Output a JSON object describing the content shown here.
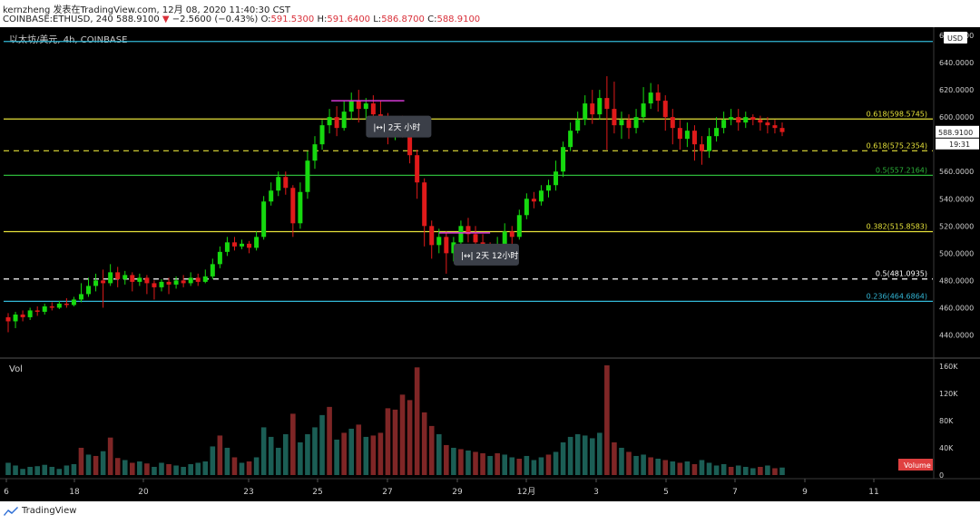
{
  "header": {
    "line1": "kernzheng 发表在TradingView.com, 12月 08, 2020 11:40:30 CST",
    "symbol": "COINBASE:ETHUSD, 240",
    "last": "588.9100",
    "arrow": "▼",
    "change": "−2.5600 (−0.43%)",
    "o_label": "O:",
    "o": "591.5300",
    "h_label": "H:",
    "h": "591.6400",
    "l_label": "L:",
    "l": "586.8700",
    "c_label": "C:",
    "c": "588.9100"
  },
  "pane_title": "以太坊/美元, 4h, COINBASE",
  "volume_label": "Vol",
  "footer": {
    "brand": "TradingView"
  },
  "colors": {
    "up": "#16d90f",
    "down": "#e01a1a",
    "vol_up": "#1b5e55",
    "vol_down": "#7f2626",
    "fib_cyan": "#33b7d6",
    "fib_yellow": "#e6e23a",
    "fib_green": "#2db53a",
    "magenta": "#d63ad6",
    "axis_bg": "#000000",
    "axis_text": "#d0d0d0"
  },
  "chart_data": {
    "type": "candlestick",
    "title": "以太坊/美元, 4h, COINBASE",
    "y_axis": {
      "unit": "USD",
      "ticks": [
        "440.0000",
        "460.0000",
        "480.0000",
        "500.0000",
        "520.0000",
        "540.0000",
        "560.0000",
        "580.0000",
        "600.0000",
        "620.0000",
        "640.0000",
        "660.0000"
      ],
      "range": [
        425,
        666
      ]
    },
    "x_axis": {
      "ticks": [
        "6",
        "18",
        "20",
        "23",
        "25",
        "27",
        "29",
        "12月",
        "3",
        "5",
        "7",
        "9",
        "11"
      ]
    },
    "current_price_label": "588.9100",
    "countdown_label": "19:31",
    "fib_levels": [
      {
        "label": "0.236(464.6864)",
        "price": 464.6864,
        "style": "solid",
        "color": "fib_cyan"
      },
      {
        "label": "0.5(481.0935)",
        "price": 481.0935,
        "style": "dashed",
        "color": "white"
      },
      {
        "label": "0.382(515.8583)",
        "price": 515.8583,
        "style": "solid",
        "color": "fib_yellow"
      },
      {
        "label": "0.5(557.2164)",
        "price": 557.2164,
        "style": "solid",
        "color": "fib_green"
      },
      {
        "label": "0.618(575.2354)",
        "price": 575.2354,
        "style": "dashed",
        "color": "fib_yellow"
      },
      {
        "label": "0.618(598.5745)",
        "price": 598.5745,
        "style": "solid",
        "color": "fib_yellow"
      },
      {
        "label": "",
        "price": 655.5,
        "style": "solid",
        "color": "fib_cyan"
      }
    ],
    "annotations": [
      {
        "text": "2天 12小时",
        "date_idx": 62,
        "price": 499
      },
      {
        "text": "2天 小时",
        "date_idx": 50,
        "price": 593
      }
    ],
    "volume_axis": {
      "ticks": [
        "0",
        "40K",
        "80K",
        "120K",
        "160K"
      ],
      "max": 165000,
      "label": "Volume"
    },
    "candles": [
      [
        453,
        450,
        456,
        442
      ],
      [
        450,
        455,
        457,
        445
      ],
      [
        455,
        453,
        458,
        450
      ],
      [
        453,
        458,
        460,
        451
      ],
      [
        458,
        457,
        461,
        454
      ],
      [
        457,
        461,
        463,
        455
      ],
      [
        461,
        460,
        464,
        458
      ],
      [
        460,
        463,
        465,
        459
      ],
      [
        463,
        462,
        467,
        460
      ],
      [
        462,
        466,
        468,
        461
      ],
      [
        466,
        470,
        478,
        464
      ],
      [
        470,
        476,
        482,
        468
      ],
      [
        476,
        480,
        485,
        472
      ],
      [
        480,
        478,
        488,
        460
      ],
      [
        478,
        486,
        492,
        476
      ],
      [
        486,
        481,
        490,
        475
      ],
      [
        481,
        484,
        487,
        477
      ],
      [
        484,
        479,
        486,
        472
      ],
      [
        479,
        482,
        485,
        476
      ],
      [
        482,
        478,
        484,
        470
      ],
      [
        478,
        475,
        480,
        466
      ],
      [
        475,
        479,
        481,
        472
      ],
      [
        479,
        477,
        482,
        470
      ],
      [
        477,
        480,
        483,
        474
      ],
      [
        480,
        478,
        484,
        475
      ],
      [
        478,
        482,
        486,
        476
      ],
      [
        482,
        479,
        485,
        476
      ],
      [
        479,
        483,
        488,
        478
      ],
      [
        483,
        492,
        496,
        481
      ],
      [
        492,
        501,
        505,
        489
      ],
      [
        501,
        508,
        512,
        498
      ],
      [
        508,
        505,
        512,
        502
      ],
      [
        505,
        507,
        510,
        503
      ],
      [
        507,
        504,
        509,
        500
      ],
      [
        504,
        512,
        516,
        502
      ],
      [
        512,
        538,
        542,
        510
      ],
      [
        538,
        546,
        552,
        535
      ],
      [
        546,
        556,
        560,
        542
      ],
      [
        556,
        548,
        560,
        543
      ],
      [
        548,
        522,
        550,
        512
      ],
      [
        522,
        545,
        552,
        518
      ],
      [
        545,
        568,
        575,
        540
      ],
      [
        568,
        580,
        586,
        562
      ],
      [
        580,
        594,
        598,
        576
      ],
      [
        594,
        600,
        606,
        588
      ],
      [
        600,
        592,
        608,
        586
      ],
      [
        592,
        604,
        612,
        590
      ],
      [
        604,
        612,
        618,
        598
      ],
      [
        612,
        606,
        620,
        596
      ],
      [
        606,
        610,
        614,
        598
      ],
      [
        610,
        602,
        616,
        595
      ],
      [
        602,
        598,
        612,
        590
      ],
      [
        598,
        586,
        603,
        580
      ],
      [
        586,
        595,
        600,
        583
      ],
      [
        595,
        590,
        601,
        585
      ],
      [
        590,
        572,
        594,
        566
      ],
      [
        572,
        552,
        576,
        540
      ],
      [
        552,
        520,
        555,
        505
      ],
      [
        520,
        506,
        524,
        496
      ],
      [
        506,
        512,
        518,
        500
      ],
      [
        512,
        500,
        516,
        485
      ],
      [
        500,
        508,
        512,
        494
      ],
      [
        508,
        520,
        524,
        505
      ],
      [
        520,
        514,
        526,
        508
      ],
      [
        514,
        508,
        520,
        502
      ],
      [
        508,
        502,
        514,
        496
      ],
      [
        502,
        496,
        508,
        492
      ],
      [
        496,
        506,
        512,
        494
      ],
      [
        506,
        516,
        522,
        504
      ],
      [
        516,
        512,
        520,
        506
      ],
      [
        512,
        528,
        532,
        510
      ],
      [
        528,
        540,
        544,
        525
      ],
      [
        540,
        538,
        545,
        533
      ],
      [
        538,
        546,
        550,
        535
      ],
      [
        546,
        550,
        554,
        541
      ],
      [
        550,
        560,
        568,
        546
      ],
      [
        560,
        578,
        582,
        556
      ],
      [
        578,
        590,
        596,
        575
      ],
      [
        590,
        598,
        604,
        588
      ],
      [
        598,
        610,
        616,
        594
      ],
      [
        610,
        602,
        620,
        595
      ],
      [
        602,
        614,
        620,
        598
      ],
      [
        614,
        606,
        630,
        576
      ],
      [
        606,
        594,
        626,
        588
      ],
      [
        594,
        598,
        604,
        584
      ],
      [
        598,
        592,
        602,
        584
      ],
      [
        592,
        600,
        606,
        588
      ],
      [
        600,
        610,
        622,
        596
      ],
      [
        610,
        618,
        625,
        606
      ],
      [
        618,
        612,
        624,
        604
      ],
      [
        612,
        600,
        616,
        590
      ],
      [
        600,
        592,
        606,
        580
      ],
      [
        592,
        584,
        598,
        576
      ],
      [
        584,
        590,
        596,
        578
      ],
      [
        590,
        580,
        594,
        568
      ],
      [
        580,
        575,
        586,
        565
      ],
      [
        575,
        586,
        592,
        570
      ],
      [
        586,
        592,
        600,
        582
      ],
      [
        592,
        598,
        604,
        588
      ],
      [
        598,
        600,
        606,
        594
      ],
      [
        600,
        596,
        606,
        590
      ],
      [
        596,
        600,
        604,
        592
      ],
      [
        600,
        598,
        602,
        594
      ],
      [
        598,
        596,
        601,
        590
      ],
      [
        596,
        594,
        600,
        588
      ],
      [
        594,
        592,
        598,
        588
      ],
      [
        592,
        589,
        596,
        586
      ]
    ],
    "volumes": [
      [
        18000,
        1
      ],
      [
        14000,
        1
      ],
      [
        9000,
        1
      ],
      [
        12000,
        1
      ],
      [
        13000,
        1
      ],
      [
        15000,
        1
      ],
      [
        12000,
        1
      ],
      [
        9000,
        1
      ],
      [
        14000,
        1
      ],
      [
        16000,
        1
      ],
      [
        40000,
        0
      ],
      [
        30000,
        1
      ],
      [
        28000,
        0
      ],
      [
        35000,
        1
      ],
      [
        55000,
        0
      ],
      [
        25000,
        0
      ],
      [
        22000,
        1
      ],
      [
        18000,
        0
      ],
      [
        20000,
        1
      ],
      [
        17000,
        0
      ],
      [
        12000,
        1
      ],
      [
        18000,
        1
      ],
      [
        16000,
        0
      ],
      [
        14000,
        1
      ],
      [
        12000,
        1
      ],
      [
        16000,
        1
      ],
      [
        18000,
        1
      ],
      [
        20000,
        1
      ],
      [
        42000,
        1
      ],
      [
        58000,
        0
      ],
      [
        40000,
        1
      ],
      [
        26000,
        0
      ],
      [
        18000,
        1
      ],
      [
        20000,
        0
      ],
      [
        26000,
        1
      ],
      [
        70000,
        1
      ],
      [
        56000,
        1
      ],
      [
        40000,
        1
      ],
      [
        60000,
        1
      ],
      [
        90000,
        0
      ],
      [
        48000,
        1
      ],
      [
        60000,
        1
      ],
      [
        70000,
        1
      ],
      [
        88000,
        1
      ],
      [
        100000,
        0
      ],
      [
        52000,
        1
      ],
      [
        62000,
        0
      ],
      [
        68000,
        1
      ],
      [
        74000,
        0
      ],
      [
        56000,
        1
      ],
      [
        58000,
        0
      ],
      [
        62000,
        0
      ],
      [
        98000,
        0
      ],
      [
        96000,
        0
      ],
      [
        118000,
        0
      ],
      [
        110000,
        0
      ],
      [
        158000,
        0
      ],
      [
        92000,
        0
      ],
      [
        72000,
        0
      ],
      [
        60000,
        1
      ],
      [
        44000,
        0
      ],
      [
        40000,
        1
      ],
      [
        38000,
        0
      ],
      [
        36000,
        1
      ],
      [
        34000,
        0
      ],
      [
        32000,
        0
      ],
      [
        28000,
        1
      ],
      [
        32000,
        0
      ],
      [
        30000,
        1
      ],
      [
        26000,
        1
      ],
      [
        24000,
        0
      ],
      [
        28000,
        1
      ],
      [
        22000,
        1
      ],
      [
        26000,
        1
      ],
      [
        30000,
        0
      ],
      [
        34000,
        1
      ],
      [
        48000,
        1
      ],
      [
        56000,
        1
      ],
      [
        60000,
        1
      ],
      [
        58000,
        1
      ],
      [
        54000,
        1
      ],
      [
        62000,
        1
      ],
      [
        161000,
        0
      ],
      [
        48000,
        0
      ],
      [
        40000,
        1
      ],
      [
        34000,
        0
      ],
      [
        28000,
        1
      ],
      [
        30000,
        1
      ],
      [
        26000,
        0
      ],
      [
        24000,
        1
      ],
      [
        22000,
        0
      ],
      [
        20000,
        1
      ],
      [
        18000,
        0
      ],
      [
        20000,
        1
      ],
      [
        16000,
        0
      ],
      [
        22000,
        1
      ],
      [
        18000,
        1
      ],
      [
        14000,
        1
      ],
      [
        16000,
        1
      ],
      [
        12000,
        0
      ],
      [
        14000,
        1
      ],
      [
        12000,
        1
      ],
      [
        10000,
        1
      ],
      [
        12000,
        0
      ],
      [
        14000,
        1
      ],
      [
        10000,
        0
      ],
      [
        11000,
        1
      ]
    ]
  }
}
